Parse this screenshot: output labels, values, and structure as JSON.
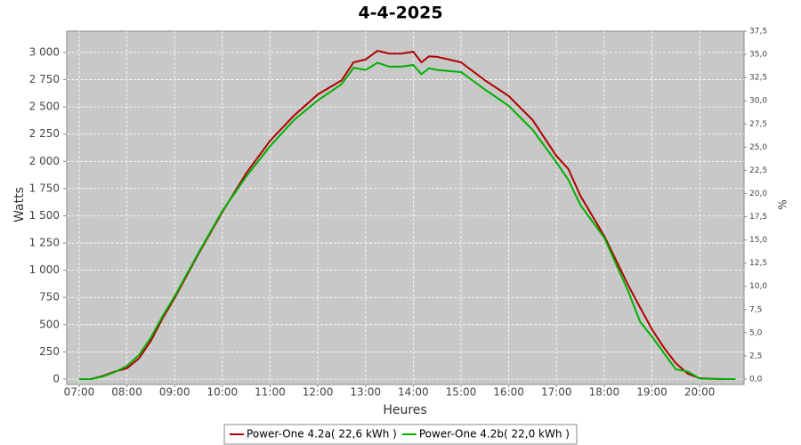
{
  "chart_data": {
    "type": "line",
    "title": "4-4-2025",
    "xlabel": "Heures",
    "ylabel": "Watts",
    "y2label": "%",
    "x": [
      7,
      7.25,
      7.5,
      7.75,
      8,
      8.25,
      8.5,
      8.75,
      9,
      9.5,
      10,
      10.5,
      11,
      11.5,
      12,
      12.5,
      12.75,
      13,
      13.25,
      13.5,
      13.75,
      14,
      14.17,
      14.33,
      14.5,
      15,
      15.5,
      16,
      16.5,
      17,
      17.25,
      17.5,
      18,
      18.5,
      18.75,
      19,
      19.25,
      19.5,
      19.75,
      20,
      20.5,
      20.75
    ],
    "series": [
      {
        "name": "Power-One 4.2a( 22,6 kWh )",
        "color": "#b00000",
        "values": [
          0,
          0,
          30,
          70,
          100,
          190,
          350,
          560,
          745,
          1150,
          1535,
          1890,
          2190,
          2420,
          2615,
          2745,
          2910,
          2935,
          3015,
          2990,
          2990,
          3007,
          2910,
          2965,
          2960,
          2910,
          2745,
          2600,
          2380,
          2050,
          1930,
          1685,
          1315,
          865,
          660,
          458,
          290,
          147,
          50,
          8,
          0,
          0
        ]
      },
      {
        "name": "Power-One 4.2b( 22,0 kWh )",
        "color": "#00b000",
        "values": [
          0,
          0,
          25,
          65,
          120,
          220,
          380,
          580,
          760,
          1160,
          1545,
          1860,
          2140,
          2380,
          2560,
          2710,
          2860,
          2840,
          2905,
          2870,
          2870,
          2885,
          2800,
          2855,
          2840,
          2820,
          2660,
          2510,
          2290,
          1990,
          1830,
          1600,
          1300,
          810,
          530,
          390,
          240,
          90,
          70,
          5,
          0,
          0
        ]
      }
    ],
    "xlim": [
      6.74,
      20.93
    ],
    "xticks": [
      {
        "value": 7,
        "label": "07:00"
      },
      {
        "value": 8,
        "label": "08:00"
      },
      {
        "value": 9,
        "label": "09:00"
      },
      {
        "value": 10,
        "label": "10:00"
      },
      {
        "value": 11,
        "label": "11:00"
      },
      {
        "value": 12,
        "label": "12:00"
      },
      {
        "value": 13,
        "label": "13:00"
      },
      {
        "value": 14,
        "label": "14:00"
      },
      {
        "value": 15,
        "label": "15:00"
      },
      {
        "value": 16,
        "label": "16:00"
      },
      {
        "value": 17,
        "label": "17:00"
      },
      {
        "value": 18,
        "label": "18:00"
      },
      {
        "value": 19,
        "label": "19:00"
      },
      {
        "value": 20,
        "label": "20:00"
      }
    ],
    "ylim": [
      0,
      3196
    ],
    "yticks": [
      0,
      250,
      500,
      750,
      {
        "value": 1000,
        "label": "1 000"
      },
      {
        "value": 1250,
        "label": "1 250"
      },
      {
        "value": 1500,
        "label": "1 500"
      },
      {
        "value": 1750,
        "label": "1 750"
      },
      {
        "value": 2000,
        "label": "2 000"
      },
      {
        "value": 2250,
        "label": "2 250"
      },
      {
        "value": 2500,
        "label": "2 500"
      },
      {
        "value": 2750,
        "label": "2 750"
      },
      {
        "value": 3000,
        "label": "3 000"
      }
    ],
    "y2lim": [
      0,
      37.5
    ],
    "y2ticks": [
      {
        "value": 0,
        "label": "0,0"
      },
      {
        "value": 2.5,
        "label": "2,5"
      },
      {
        "value": 5,
        "label": "5,0"
      },
      {
        "value": 7.5,
        "label": "7,5"
      },
      {
        "value": 10,
        "label": "10,0"
      },
      {
        "value": 12.5,
        "label": "12,5"
      },
      {
        "value": 15,
        "label": "15,0"
      },
      {
        "value": 17.5,
        "label": "17,5"
      },
      {
        "value": 20,
        "label": "20,0"
      },
      {
        "value": 22.5,
        "label": "22,5"
      },
      {
        "value": 25,
        "label": "25,0"
      },
      {
        "value": 27.5,
        "label": "27,5"
      },
      {
        "value": 30,
        "label": "30,0"
      },
      {
        "value": 32.5,
        "label": "32,5"
      },
      {
        "value": 35,
        "label": "35,0"
      },
      {
        "value": 37.5,
        "label": "37,5"
      }
    ],
    "grid": true,
    "legend": "bottom"
  }
}
